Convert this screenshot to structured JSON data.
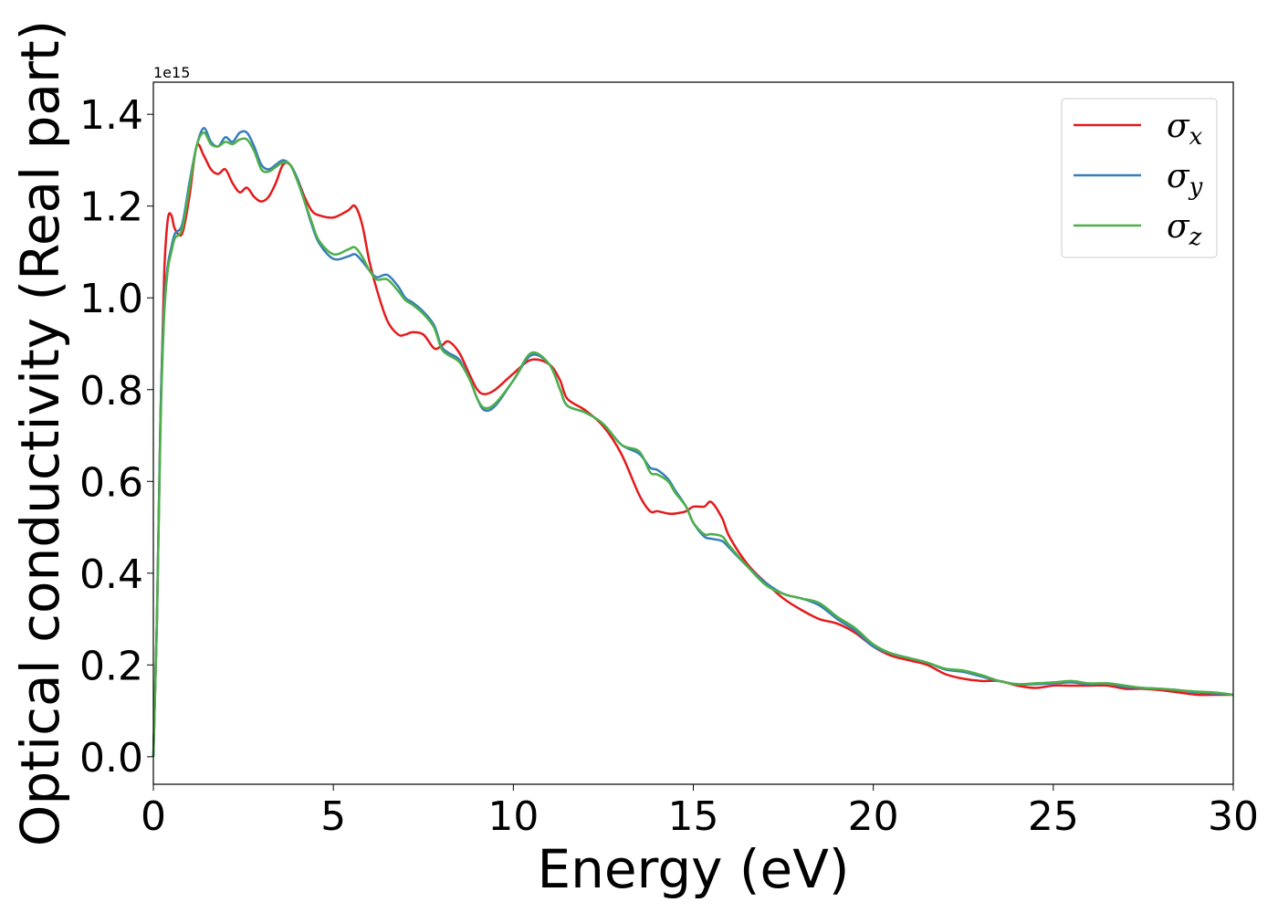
{
  "chart_data": {
    "type": "line",
    "xlabel": "Energy (eV)",
    "ylabel": "Optical conductivity (Real part)",
    "y_offset_label": "1e15",
    "xlim": [
      0,
      30
    ],
    "ylim": [
      -0.06,
      1.47
    ],
    "x_ticks": [
      0,
      5,
      10,
      15,
      20,
      25,
      30
    ],
    "x_tick_labels": [
      "0",
      "5",
      "10",
      "15",
      "20",
      "25",
      "30"
    ],
    "y_ticks": [
      0.0,
      0.2,
      0.4,
      0.6,
      0.8,
      1.0,
      1.2,
      1.4
    ],
    "y_tick_labels": [
      "0.0",
      "0.2",
      "0.4",
      "0.6",
      "0.8",
      "1.0",
      "1.2",
      "1.4"
    ],
    "grid": false,
    "legend_position": "top-right",
    "series": [
      {
        "name": "σx",
        "legend_base": "σ",
        "legend_sub": "x",
        "color": "#e41a1c",
        "x": [
          0,
          0.1,
          0.2,
          0.3,
          0.4,
          0.5,
          0.6,
          0.8,
          1.0,
          1.2,
          1.4,
          1.6,
          1.8,
          2.0,
          2.2,
          2.4,
          2.6,
          2.8,
          3.0,
          3.2,
          3.4,
          3.6,
          3.8,
          4.0,
          4.2,
          4.4,
          4.6,
          5.0,
          5.4,
          5.6,
          5.8,
          6.0,
          6.2,
          6.5,
          6.8,
          7.0,
          7.2,
          7.5,
          7.8,
          8.0,
          8.2,
          8.5,
          8.8,
          9.0,
          9.2,
          9.5,
          10.0,
          10.5,
          11.0,
          11.3,
          11.5,
          12.0,
          12.5,
          13.0,
          13.5,
          13.8,
          14.0,
          14.3,
          14.5,
          14.8,
          15.0,
          15.3,
          15.5,
          15.8,
          16.0,
          16.5,
          17.0,
          17.5,
          18.0,
          18.5,
          19.0,
          19.5,
          20.0,
          20.5,
          21.0,
          21.5,
          22.0,
          22.5,
          23.0,
          23.5,
          24.0,
          24.5,
          25.0,
          25.5,
          26.0,
          26.5,
          27.0,
          27.5,
          28.0,
          28.5,
          29.0,
          29.5,
          30.0
        ],
        "y": [
          0.0,
          0.3,
          0.75,
          1.05,
          1.17,
          1.18,
          1.15,
          1.14,
          1.22,
          1.33,
          1.31,
          1.28,
          1.27,
          1.28,
          1.25,
          1.23,
          1.24,
          1.22,
          1.21,
          1.22,
          1.25,
          1.29,
          1.29,
          1.26,
          1.22,
          1.19,
          1.18,
          1.175,
          1.19,
          1.2,
          1.16,
          1.08,
          1.02,
          0.95,
          0.92,
          0.92,
          0.925,
          0.92,
          0.89,
          0.895,
          0.905,
          0.88,
          0.83,
          0.8,
          0.79,
          0.8,
          0.835,
          0.865,
          0.855,
          0.82,
          0.78,
          0.755,
          0.72,
          0.66,
          0.57,
          0.535,
          0.535,
          0.53,
          0.53,
          0.535,
          0.545,
          0.545,
          0.555,
          0.52,
          0.48,
          0.42,
          0.38,
          0.345,
          0.32,
          0.3,
          0.29,
          0.27,
          0.24,
          0.22,
          0.21,
          0.2,
          0.18,
          0.17,
          0.165,
          0.165,
          0.155,
          0.15,
          0.155,
          0.155,
          0.155,
          0.155,
          0.148,
          0.148,
          0.145,
          0.14,
          0.135,
          0.135,
          0.135
        ]
      },
      {
        "name": "σy",
        "legend_base": "σ",
        "legend_sub": "y",
        "color": "#377eb8",
        "x": [
          0,
          0.1,
          0.2,
          0.3,
          0.4,
          0.5,
          0.6,
          0.8,
          1.0,
          1.2,
          1.4,
          1.6,
          1.8,
          2.0,
          2.2,
          2.4,
          2.6,
          2.8,
          3.0,
          3.2,
          3.4,
          3.6,
          3.8,
          4.0,
          4.2,
          4.4,
          4.6,
          5.0,
          5.4,
          5.6,
          5.8,
          6.0,
          6.2,
          6.5,
          6.8,
          7.0,
          7.2,
          7.5,
          7.8,
          8.0,
          8.2,
          8.5,
          8.8,
          9.0,
          9.2,
          9.5,
          10.0,
          10.5,
          11.0,
          11.3,
          11.5,
          12.0,
          12.5,
          13.0,
          13.5,
          13.8,
          14.0,
          14.3,
          14.5,
          14.8,
          15.0,
          15.3,
          15.5,
          15.8,
          16.0,
          16.5,
          17.0,
          17.5,
          18.0,
          18.5,
          19.0,
          19.5,
          20.0,
          20.5,
          21.0,
          21.5,
          22.0,
          22.5,
          23.0,
          23.5,
          24.0,
          24.5,
          25.0,
          25.5,
          26.0,
          26.5,
          27.0,
          27.5,
          28.0,
          28.5,
          29.0,
          29.5,
          30.0
        ],
        "y": [
          0.0,
          0.3,
          0.75,
          0.98,
          1.07,
          1.11,
          1.14,
          1.16,
          1.25,
          1.33,
          1.37,
          1.34,
          1.33,
          1.35,
          1.34,
          1.36,
          1.36,
          1.33,
          1.29,
          1.28,
          1.29,
          1.3,
          1.29,
          1.26,
          1.21,
          1.16,
          1.12,
          1.085,
          1.09,
          1.095,
          1.08,
          1.06,
          1.045,
          1.05,
          1.025,
          1.0,
          0.99,
          0.97,
          0.94,
          0.895,
          0.88,
          0.865,
          0.82,
          0.78,
          0.755,
          0.765,
          0.82,
          0.875,
          0.855,
          0.8,
          0.765,
          0.75,
          0.725,
          0.68,
          0.66,
          0.63,
          0.625,
          0.605,
          0.58,
          0.545,
          0.51,
          0.48,
          0.475,
          0.47,
          0.455,
          0.415,
          0.38,
          0.355,
          0.345,
          0.33,
          0.3,
          0.275,
          0.24,
          0.225,
          0.215,
          0.205,
          0.19,
          0.185,
          0.175,
          0.165,
          0.158,
          0.158,
          0.16,
          0.162,
          0.158,
          0.16,
          0.152,
          0.15,
          0.148,
          0.145,
          0.14,
          0.138,
          0.135
        ]
      },
      {
        "name": "σz",
        "legend_base": "σ",
        "legend_sub": "z",
        "color": "#4daf4a",
        "x": [
          0,
          0.1,
          0.2,
          0.3,
          0.4,
          0.5,
          0.6,
          0.8,
          1.0,
          1.2,
          1.4,
          1.6,
          1.8,
          2.0,
          2.2,
          2.4,
          2.6,
          2.8,
          3.0,
          3.2,
          3.4,
          3.6,
          3.8,
          4.0,
          4.2,
          4.4,
          4.6,
          5.0,
          5.4,
          5.6,
          5.8,
          6.0,
          6.2,
          6.5,
          6.8,
          7.0,
          7.2,
          7.5,
          7.8,
          8.0,
          8.2,
          8.5,
          8.8,
          9.0,
          9.2,
          9.5,
          10.0,
          10.5,
          11.0,
          11.3,
          11.5,
          12.0,
          12.5,
          13.0,
          13.5,
          13.8,
          14.0,
          14.3,
          14.5,
          14.8,
          15.0,
          15.3,
          15.5,
          15.8,
          16.0,
          16.5,
          17.0,
          17.5,
          18.0,
          18.5,
          19.0,
          19.5,
          20.0,
          20.5,
          21.0,
          21.5,
          22.0,
          22.5,
          23.0,
          23.5,
          24.0,
          24.5,
          25.0,
          25.5,
          26.0,
          26.5,
          27.0,
          27.5,
          28.0,
          28.5,
          29.0,
          29.5,
          30.0
        ],
        "y": [
          0.0,
          0.3,
          0.72,
          0.96,
          1.06,
          1.1,
          1.13,
          1.15,
          1.24,
          1.33,
          1.36,
          1.335,
          1.33,
          1.34,
          1.335,
          1.345,
          1.345,
          1.32,
          1.28,
          1.275,
          1.285,
          1.295,
          1.29,
          1.255,
          1.21,
          1.165,
          1.125,
          1.095,
          1.105,
          1.11,
          1.09,
          1.06,
          1.04,
          1.04,
          1.015,
          0.995,
          0.985,
          0.965,
          0.935,
          0.89,
          0.875,
          0.86,
          0.82,
          0.78,
          0.76,
          0.77,
          0.82,
          0.88,
          0.855,
          0.8,
          0.765,
          0.75,
          0.725,
          0.68,
          0.665,
          0.62,
          0.615,
          0.6,
          0.575,
          0.545,
          0.51,
          0.485,
          0.485,
          0.48,
          0.46,
          0.415,
          0.375,
          0.355,
          0.345,
          0.335,
          0.305,
          0.28,
          0.245,
          0.225,
          0.215,
          0.205,
          0.192,
          0.188,
          0.178,
          0.165,
          0.158,
          0.16,
          0.162,
          0.165,
          0.16,
          0.16,
          0.155,
          0.15,
          0.148,
          0.145,
          0.142,
          0.14,
          0.135
        ]
      }
    ]
  }
}
